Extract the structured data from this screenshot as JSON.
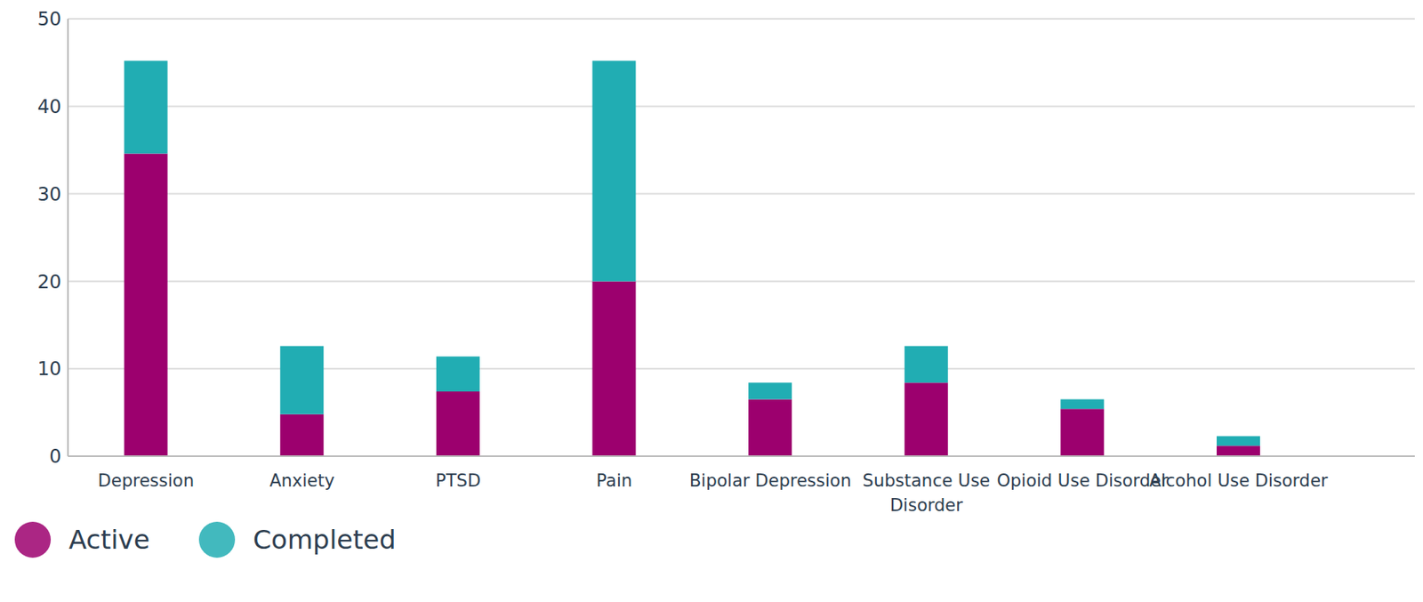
{
  "chart_data": {
    "type": "bar",
    "stacked": true,
    "categories": [
      "Depression",
      "Anxiety",
      "PTSD",
      "Pain",
      "Bipolar Depression",
      "Substance Use Disorder",
      "Opioid Use Disorder",
      "Alcohol Use Disorder"
    ],
    "series": [
      {
        "name": "Active",
        "color": "#9c006e",
        "values": [
          34.6,
          4.8,
          7.4,
          20,
          6.5,
          8.4,
          5.4,
          1.2
        ]
      },
      {
        "name": "Completed",
        "color": "#21adb3",
        "values": [
          10.6,
          7.8,
          4,
          25.2,
          1.9,
          4.2,
          1.1,
          1.1
        ]
      }
    ],
    "ylim": [
      0,
      50
    ],
    "yticks": [
      0,
      10,
      20,
      30,
      40,
      50
    ],
    "grid": true,
    "legend": "bottom left"
  }
}
